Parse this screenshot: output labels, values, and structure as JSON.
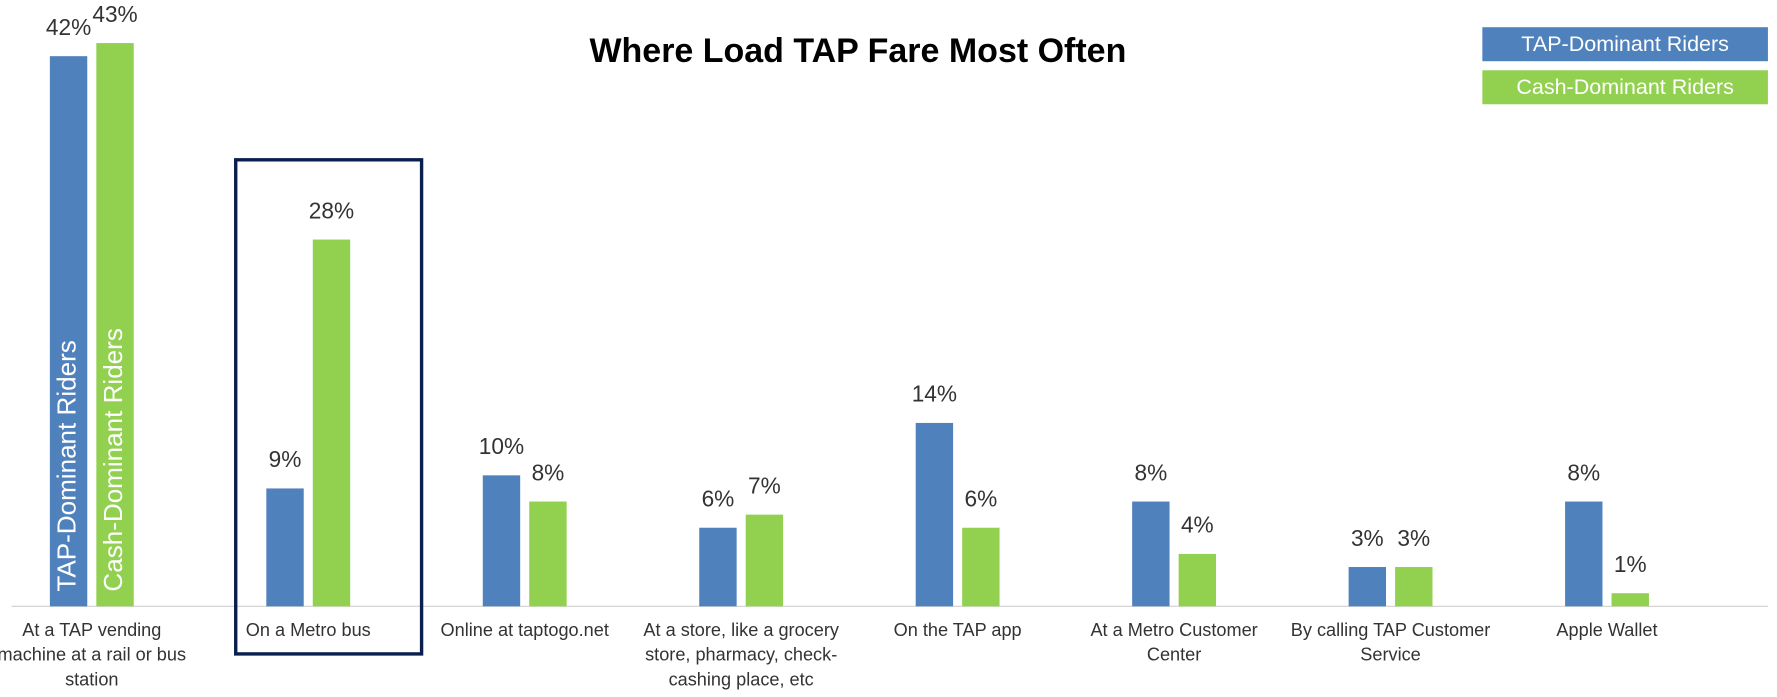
{
  "chart_data": {
    "type": "bar",
    "title": "Where Load TAP Fare Most Often",
    "categories": [
      "At a TAP vending machine at a rail or bus station",
      "On a Metro bus",
      "Online at taptogo.net",
      "At a store, like a grocery store, pharmacy, check-cashing place, etc",
      "On the TAP app",
      "At a Metro Customer Center",
      "By calling TAP Customer Service",
      "Apple Wallet"
    ],
    "series": [
      {
        "name": "TAP-Dominant Riders",
        "color": "#4f81bd",
        "values": [
          42,
          9,
          10,
          6,
          14,
          8,
          3,
          8
        ],
        "value_labels": [
          "42%",
          "9%",
          "10%",
          "6%",
          "14%",
          "8%",
          "3%",
          "8%"
        ]
      },
      {
        "name": "Cash-Dominant Riders",
        "color": "#92d050",
        "values": [
          43,
          28,
          8,
          7,
          6,
          4,
          3,
          1
        ],
        "value_labels": [
          "43%",
          "28%",
          "8%",
          "7%",
          "6%",
          "4%",
          "3%",
          "1%"
        ]
      }
    ],
    "legend": "top-right"
  }
}
